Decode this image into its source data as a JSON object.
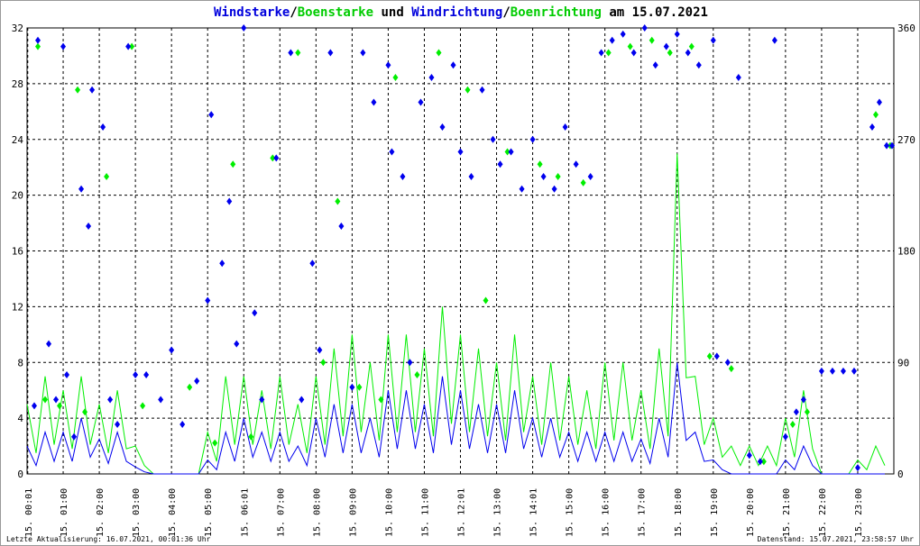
{
  "title": {
    "part1": "Windstarke",
    "sep1": "/",
    "part2": "Boenstarke",
    "mid": " und ",
    "part3": "Windrichtung",
    "sep2": "/",
    "part4": "Boenrichtung",
    "tail": " am 15.07.2021"
  },
  "footer": {
    "left": "Letzte Aktualisierung: 16.07.2021, 00:01:36 Uhr",
    "right": "Datenstand: 15.07.2021, 23:58:57 Uhr"
  },
  "colors": {
    "wind": "#0000ee",
    "gust": "#00ee00"
  },
  "chart_data": {
    "type": "line+scatter",
    "title": "Windstarke/Boenstarke und Windrichtung/Boenrichtung am 15.07.2021",
    "xlim": [
      0,
      24
    ],
    "ylim_left": [
      0,
      32
    ],
    "yticks_left": [
      "0",
      "4",
      "8",
      "12",
      "16",
      "20",
      "24",
      "28",
      "32"
    ],
    "ylim_right": [
      0,
      360
    ],
    "yticks_right": [
      "0",
      "90",
      "180",
      "270",
      "360"
    ],
    "xticks": [
      "15. 00:01",
      "15. 01:00",
      "15. 02:00",
      "15. 03:00",
      "15. 04:00",
      "15. 05:00",
      "15. 06:01",
      "15. 07:00",
      "15. 08:00",
      "15. 09:00",
      "15. 10:00",
      "15. 11:00",
      "15. 12:01",
      "15. 13:00",
      "15. 14:01",
      "15. 15:00",
      "15. 16:00",
      "15. 17:00",
      "15. 18:00",
      "15. 19:00",
      "15. 20:00",
      "15. 21:00",
      "15. 22:00",
      "15. 23:00"
    ],
    "grid": true,
    "step_hours": 0.5,
    "wind_speed": [
      2,
      3,
      3,
      4,
      2.5,
      3,
      0.5,
      0,
      0,
      0,
      1,
      3,
      4,
      3,
      3,
      2,
      4,
      5,
      5,
      4,
      6,
      6,
      5,
      7,
      6,
      5,
      5,
      6,
      4,
      4,
      3,
      3,
      3,
      3,
      2.5,
      4,
      8,
      3,
      1,
      0,
      0,
      0,
      1,
      2,
      0,
      0,
      0,
      0
    ],
    "gust_speed": [
      5,
      7,
      6,
      7,
      5,
      6,
      2,
      0,
      0,
      0,
      3,
      7,
      7,
      6,
      7,
      5,
      7,
      9,
      10,
      8,
      10,
      10,
      9,
      12,
      10,
      9,
      8,
      10,
      7,
      8,
      7,
      6,
      8,
      8,
      6,
      9,
      23,
      7,
      4,
      2,
      2,
      2,
      4,
      6,
      0,
      0,
      1,
      2
    ],
    "wind_direction": [
      [
        0.2,
        55
      ],
      [
        0.3,
        350
      ],
      [
        0.6,
        105
      ],
      [
        0.8,
        60
      ],
      [
        1,
        345
      ],
      [
        1.1,
        80
      ],
      [
        1.3,
        30
      ],
      [
        1.5,
        230
      ],
      [
        1.7,
        200
      ],
      [
        1.8,
        310
      ],
      [
        2.1,
        280
      ],
      [
        2.3,
        60
      ],
      [
        2.5,
        40
      ],
      [
        2.8,
        345
      ],
      [
        3,
        80
      ],
      [
        3.3,
        80
      ],
      [
        3.7,
        60
      ],
      [
        4,
        100
      ],
      [
        4.3,
        40
      ],
      [
        4.7,
        75
      ],
      [
        5,
        140
      ],
      [
        5.1,
        290
      ],
      [
        5.4,
        170
      ],
      [
        5.6,
        220
      ],
      [
        5.8,
        105
      ],
      [
        6,
        360
      ],
      [
        6.3,
        130
      ],
      [
        6.5,
        60
      ],
      [
        6.9,
        255
      ],
      [
        7.3,
        340
      ],
      [
        7.6,
        60
      ],
      [
        7.9,
        170
      ],
      [
        8.1,
        100
      ],
      [
        8.4,
        340
      ],
      [
        8.7,
        200
      ],
      [
        9,
        70
      ],
      [
        9.3,
        340
      ],
      [
        9.6,
        300
      ],
      [
        10,
        330
      ],
      [
        10.1,
        260
      ],
      [
        10.4,
        240
      ],
      [
        10.6,
        90
      ],
      [
        10.9,
        300
      ],
      [
        11.2,
        320
      ],
      [
        11.5,
        280
      ],
      [
        11.8,
        330
      ],
      [
        12,
        260
      ],
      [
        12.3,
        240
      ],
      [
        12.6,
        310
      ],
      [
        12.9,
        270
      ],
      [
        13.1,
        250
      ],
      [
        13.4,
        260
      ],
      [
        13.7,
        230
      ],
      [
        14,
        270
      ],
      [
        14.3,
        240
      ],
      [
        14.6,
        230
      ],
      [
        14.9,
        280
      ],
      [
        15.2,
        250
      ],
      [
        15.6,
        240
      ],
      [
        15.9,
        340
      ],
      [
        16.2,
        350
      ],
      [
        16.5,
        355
      ],
      [
        16.8,
        340
      ],
      [
        17.1,
        360
      ],
      [
        17.4,
        330
      ],
      [
        17.7,
        345
      ],
      [
        18,
        355
      ],
      [
        18.3,
        340
      ],
      [
        18.6,
        330
      ],
      [
        19,
        350
      ],
      [
        19.1,
        95
      ],
      [
        19.4,
        90
      ],
      [
        19.7,
        320
      ],
      [
        20,
        15
      ],
      [
        20.3,
        10
      ],
      [
        20.7,
        350
      ],
      [
        21,
        30
      ],
      [
        21.3,
        50
      ],
      [
        21.5,
        60
      ],
      [
        22,
        83
      ],
      [
        22.3,
        83
      ],
      [
        22.6,
        83
      ],
      [
        22.9,
        83
      ],
      [
        23,
        5
      ],
      [
        23.4,
        280
      ],
      [
        23.6,
        300
      ],
      [
        23.8,
        265
      ],
      [
        23.95,
        265
      ]
    ],
    "gust_direction": [
      [
        0.3,
        345
      ],
      [
        0.5,
        60
      ],
      [
        0.9,
        55
      ],
      [
        1.4,
        310
      ],
      [
        1.6,
        50
      ],
      [
        2.2,
        240
      ],
      [
        2.9,
        345
      ],
      [
        3.2,
        55
      ],
      [
        4.5,
        70
      ],
      [
        5.2,
        25
      ],
      [
        5.7,
        250
      ],
      [
        6.2,
        30
      ],
      [
        6.8,
        255
      ],
      [
        7.5,
        340
      ],
      [
        8.2,
        90
      ],
      [
        8.6,
        220
      ],
      [
        9.2,
        70
      ],
      [
        9.8,
        60
      ],
      [
        10.2,
        320
      ],
      [
        10.8,
        80
      ],
      [
        11.4,
        340
      ],
      [
        12.2,
        310
      ],
      [
        12.7,
        140
      ],
      [
        13.3,
        260
      ],
      [
        14.2,
        250
      ],
      [
        14.7,
        240
      ],
      [
        15.4,
        235
      ],
      [
        16.1,
        340
      ],
      [
        16.7,
        345
      ],
      [
        17.3,
        350
      ],
      [
        17.8,
        340
      ],
      [
        18.4,
        345
      ],
      [
        18.9,
        95
      ],
      [
        19.5,
        85
      ],
      [
        20.4,
        10
      ],
      [
        21.2,
        40
      ],
      [
        21.6,
        50
      ],
      [
        23.5,
        290
      ],
      [
        23.9,
        265
      ]
    ]
  }
}
